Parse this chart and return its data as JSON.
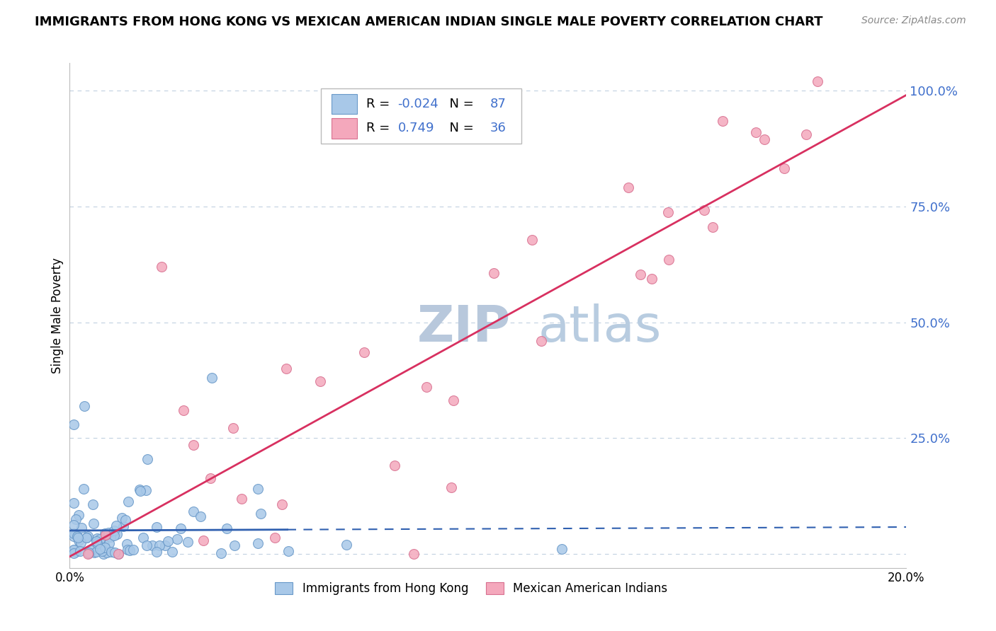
{
  "title": "IMMIGRANTS FROM HONG KONG VS MEXICAN AMERICAN INDIAN SINGLE MALE POVERTY CORRELATION CHART",
  "source_text": "Source: ZipAtlas.com",
  "ylabel": "Single Male Poverty",
  "r_blue": -0.024,
  "n_blue": 87,
  "r_pink": 0.749,
  "n_pink": 36,
  "blue_color": "#a8c8e8",
  "pink_color": "#f4a8bc",
  "blue_line_color": "#3060b0",
  "pink_line_color": "#d83060",
  "blue_edge_color": "#6898c8",
  "pink_edge_color": "#d87090",
  "watermark_color": "#c8d8ec",
  "grid_color": "#c0d0e0",
  "background_color": "#ffffff",
  "ytick_values": [
    0.0,
    0.25,
    0.5,
    0.75,
    1.0
  ],
  "ytick_color": "#4070cc",
  "xlim": [
    0.0,
    0.2
  ],
  "ylim": [
    -0.03,
    1.06
  ],
  "legend_labels": [
    "Immigrants from Hong Kong",
    "Mexican American Indians"
  ]
}
